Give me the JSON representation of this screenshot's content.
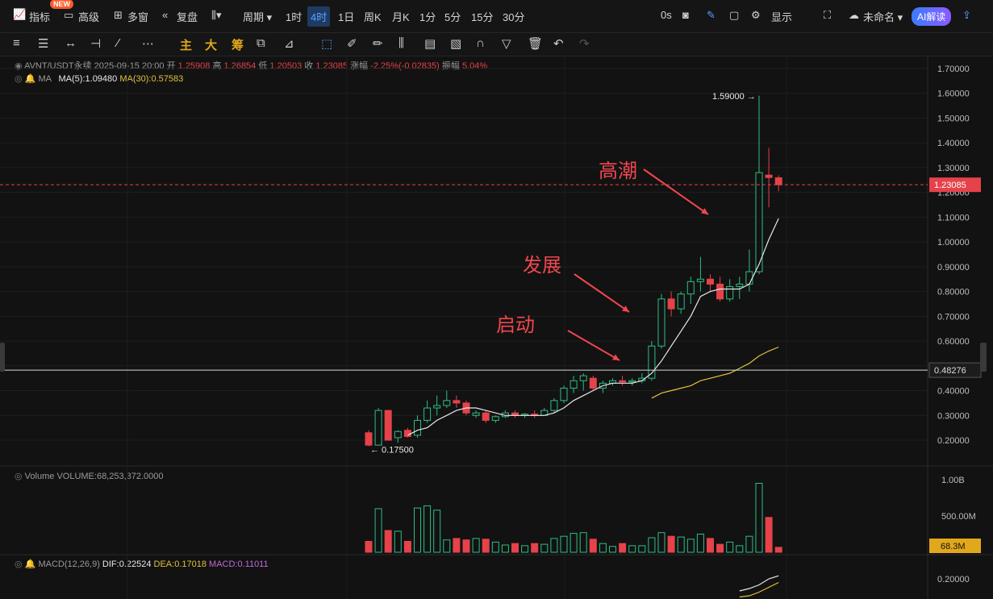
{
  "toolbar": {
    "indicators_label": "指标",
    "new_badge": "NEW",
    "advanced_label": "高级",
    "multi_window_label": "多窗",
    "replay_label": "复盘",
    "period_label": "周期",
    "intervals": [
      "1时",
      "4时",
      "1日",
      "周K",
      "月K",
      "1分",
      "5分",
      "15分",
      "30分"
    ],
    "active_interval": "4时",
    "timer": "0s",
    "display_label": "显示",
    "unnamed_label": "未命名",
    "ai_label": "AI解读"
  },
  "drawing_toolbar": {
    "chars": [
      "主",
      "大",
      "筹"
    ]
  },
  "price_header": {
    "symbol": "AVNT/USDT永续",
    "datetime": "2025-09-15 20:00",
    "open_label": "开",
    "open": "1.25908",
    "high_label": "高",
    "high": "1.26854",
    "low_label": "低",
    "low": "1.20503",
    "close_label": "收",
    "close": "1.23085",
    "change_label": "涨幅",
    "change": "-2.25%(-0.02835)",
    "amplitude_label": "振幅",
    "amplitude": "5.04%"
  },
  "ma_legend": {
    "label": "MA",
    "ma5": "MA(5):1.09480",
    "ma30": "MA(30):0.57583"
  },
  "volume_legend": {
    "label": "Volume",
    "value": "VOLUME:68,253,372.0000"
  },
  "macd_legend": {
    "label": "MACD(12,26,9)",
    "dif": "DIF:0.22524",
    "dea": "DEA:0.17018",
    "macd": "MACD:0.11011"
  },
  "colors": {
    "up": "#2ebd85",
    "down": "#e5424a",
    "ma5": "#e8e8e8",
    "ma30": "#e2c13a",
    "annotation": "#f0474f",
    "price_tag": "#e5424a",
    "volume_tag": "#e2a81c"
  },
  "chart_data": {
    "type": "candlestick",
    "price_axis": {
      "ticks": [
        "1.70000",
        "1.60000",
        "1.50000",
        "1.40000",
        "1.30000",
        "1.20000",
        "1.10000",
        "1.00000",
        "0.90000",
        "0.80000",
        "0.70000",
        "0.60000",
        "0.50000",
        "0.40000",
        "0.30000",
        "0.20000"
      ],
      "ylim": [
        0.1,
        1.75
      ]
    },
    "current_price": "1.23085",
    "horizontal_line": "0.48276",
    "high_label": "1.59000",
    "low_label": "0.17500",
    "annotations": [
      {
        "text": "高潮",
        "price": 1.35
      },
      {
        "text": "发展",
        "price": 0.87
      },
      {
        "text": "启动",
        "price": 0.62
      }
    ],
    "candles": [
      {
        "o": 0.23,
        "h": 0.24,
        "l": 0.175,
        "c": 0.18
      },
      {
        "o": 0.18,
        "h": 0.33,
        "l": 0.18,
        "c": 0.32
      },
      {
        "o": 0.32,
        "h": 0.32,
        "l": 0.2,
        "c": 0.2
      },
      {
        "o": 0.21,
        "h": 0.24,
        "l": 0.19,
        "c": 0.235
      },
      {
        "o": 0.24,
        "h": 0.25,
        "l": 0.21,
        "c": 0.215
      },
      {
        "o": 0.22,
        "h": 0.3,
        "l": 0.21,
        "c": 0.28
      },
      {
        "o": 0.28,
        "h": 0.36,
        "l": 0.27,
        "c": 0.33
      },
      {
        "o": 0.33,
        "h": 0.38,
        "l": 0.3,
        "c": 0.34
      },
      {
        "o": 0.34,
        "h": 0.4,
        "l": 0.33,
        "c": 0.36
      },
      {
        "o": 0.36,
        "h": 0.38,
        "l": 0.33,
        "c": 0.35
      },
      {
        "o": 0.35,
        "h": 0.36,
        "l": 0.3,
        "c": 0.31
      },
      {
        "o": 0.3,
        "h": 0.32,
        "l": 0.29,
        "c": 0.31
      },
      {
        "o": 0.31,
        "h": 0.32,
        "l": 0.27,
        "c": 0.28
      },
      {
        "o": 0.28,
        "h": 0.3,
        "l": 0.27,
        "c": 0.295
      },
      {
        "o": 0.295,
        "h": 0.32,
        "l": 0.29,
        "c": 0.31
      },
      {
        "o": 0.31,
        "h": 0.32,
        "l": 0.29,
        "c": 0.3
      },
      {
        "o": 0.3,
        "h": 0.31,
        "l": 0.29,
        "c": 0.305
      },
      {
        "o": 0.305,
        "h": 0.32,
        "l": 0.29,
        "c": 0.3
      },
      {
        "o": 0.3,
        "h": 0.33,
        "l": 0.3,
        "c": 0.32
      },
      {
        "o": 0.32,
        "h": 0.37,
        "l": 0.31,
        "c": 0.36
      },
      {
        "o": 0.36,
        "h": 0.42,
        "l": 0.35,
        "c": 0.41
      },
      {
        "o": 0.41,
        "h": 0.46,
        "l": 0.39,
        "c": 0.44
      },
      {
        "o": 0.44,
        "h": 0.47,
        "l": 0.4,
        "c": 0.46
      },
      {
        "o": 0.45,
        "h": 0.46,
        "l": 0.4,
        "c": 0.41
      },
      {
        "o": 0.41,
        "h": 0.44,
        "l": 0.39,
        "c": 0.43
      },
      {
        "o": 0.43,
        "h": 0.45,
        "l": 0.42,
        "c": 0.44
      },
      {
        "o": 0.44,
        "h": 0.46,
        "l": 0.42,
        "c": 0.435
      },
      {
        "o": 0.435,
        "h": 0.45,
        "l": 0.42,
        "c": 0.44
      },
      {
        "o": 0.44,
        "h": 0.47,
        "l": 0.43,
        "c": 0.45
      },
      {
        "o": 0.45,
        "h": 0.6,
        "l": 0.44,
        "c": 0.58
      },
      {
        "o": 0.58,
        "h": 0.79,
        "l": 0.57,
        "c": 0.77
      },
      {
        "o": 0.77,
        "h": 0.8,
        "l": 0.7,
        "c": 0.73
      },
      {
        "o": 0.73,
        "h": 0.8,
        "l": 0.71,
        "c": 0.79
      },
      {
        "o": 0.79,
        "h": 0.86,
        "l": 0.75,
        "c": 0.84
      },
      {
        "o": 0.84,
        "h": 0.94,
        "l": 0.8,
        "c": 0.85
      },
      {
        "o": 0.85,
        "h": 0.87,
        "l": 0.8,
        "c": 0.83
      },
      {
        "o": 0.83,
        "h": 0.86,
        "l": 0.76,
        "c": 0.77
      },
      {
        "o": 0.77,
        "h": 0.85,
        "l": 0.76,
        "c": 0.82
      },
      {
        "o": 0.82,
        "h": 0.86,
        "l": 0.77,
        "c": 0.83
      },
      {
        "o": 0.83,
        "h": 0.97,
        "l": 0.8,
        "c": 0.88
      },
      {
        "o": 0.88,
        "h": 1.59,
        "l": 0.87,
        "c": 1.28
      },
      {
        "o": 1.27,
        "h": 1.38,
        "l": 1.14,
        "c": 1.26
      },
      {
        "o": 1.25908,
        "h": 1.26854,
        "l": 1.20503,
        "c": 1.23085
      }
    ],
    "ma5": [
      null,
      null,
      null,
      null,
      0.22,
      0.24,
      0.25,
      0.28,
      0.3,
      0.32,
      0.33,
      0.33,
      0.32,
      0.31,
      0.3,
      0.3,
      0.3,
      0.3,
      0.3,
      0.31,
      0.33,
      0.36,
      0.38,
      0.4,
      0.42,
      0.43,
      0.43,
      0.43,
      0.44,
      0.47,
      0.52,
      0.58,
      0.64,
      0.7,
      0.78,
      0.8,
      0.81,
      0.81,
      0.81,
      0.83,
      0.91,
      1.01,
      1.0948
    ],
    "ma30": [
      null,
      null,
      null,
      null,
      null,
      null,
      null,
      null,
      null,
      null,
      null,
      null,
      null,
      null,
      null,
      null,
      null,
      null,
      null,
      null,
      null,
      null,
      null,
      null,
      null,
      null,
      null,
      null,
      null,
      0.37,
      0.39,
      0.4,
      0.41,
      0.42,
      0.44,
      0.45,
      0.46,
      0.47,
      0.49,
      0.51,
      0.54,
      0.56,
      0.57583
    ],
    "volume_axis": {
      "ticks": [
        "1.00B",
        "500.00M"
      ],
      "ylim": [
        0,
        1.05
      ]
    },
    "volume_current": "68.3M",
    "volume": [
      0.15,
      0.6,
      0.3,
      0.29,
      0.15,
      0.61,
      0.64,
      0.58,
      0.17,
      0.19,
      0.17,
      0.19,
      0.18,
      0.14,
      0.1,
      0.12,
      0.09,
      0.12,
      0.11,
      0.19,
      0.22,
      0.26,
      0.27,
      0.18,
      0.12,
      0.08,
      0.12,
      0.09,
      0.09,
      0.2,
      0.27,
      0.22,
      0.21,
      0.18,
      0.25,
      0.19,
      0.11,
      0.14,
      0.09,
      0.22,
      0.95,
      0.48,
      0.068
    ],
    "macd_axis": {
      "ticks": [
        "0.20000"
      ]
    },
    "dif": [
      0.1,
      0.12,
      0.15,
      0.2,
      0.22524
    ],
    "dea": [
      0.05,
      0.06,
      0.09,
      0.13,
      0.17018
    ]
  }
}
